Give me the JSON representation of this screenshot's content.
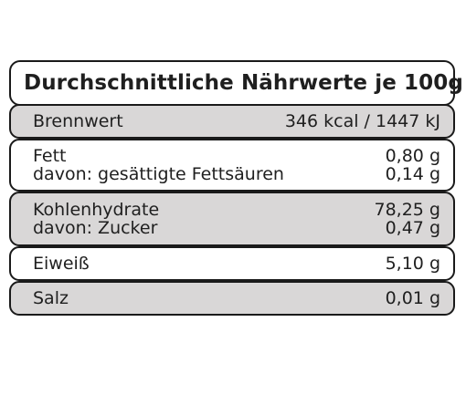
{
  "title": "Durchschnittliche Nährwerte je 100g",
  "rows": [
    {
      "lines": [
        {
          "label": "Brennwert",
          "value": "346 kcal / 1447 kJ"
        }
      ]
    },
    {
      "lines": [
        {
          "label": "Fett",
          "value": "0,80 g"
        },
        {
          "label": "davon: gesättigte Fettsäuren",
          "value": "0,14 g"
        }
      ]
    },
    {
      "lines": [
        {
          "label": "Kohlenhydrate",
          "value": "78,25 g"
        },
        {
          "label": "davon: Zucker",
          "value": "0,47 g"
        }
      ]
    },
    {
      "lines": [
        {
          "label": "Eiweiß",
          "value": "5,10 g"
        }
      ]
    },
    {
      "lines": [
        {
          "label": "Salz",
          "value": "0,01 g"
        }
      ]
    }
  ],
  "colors": {
    "border": "#1a1a1a",
    "grey_row": "#d9d7d7",
    "white_row": "#ffffff",
    "text": "#1f1f1f"
  }
}
